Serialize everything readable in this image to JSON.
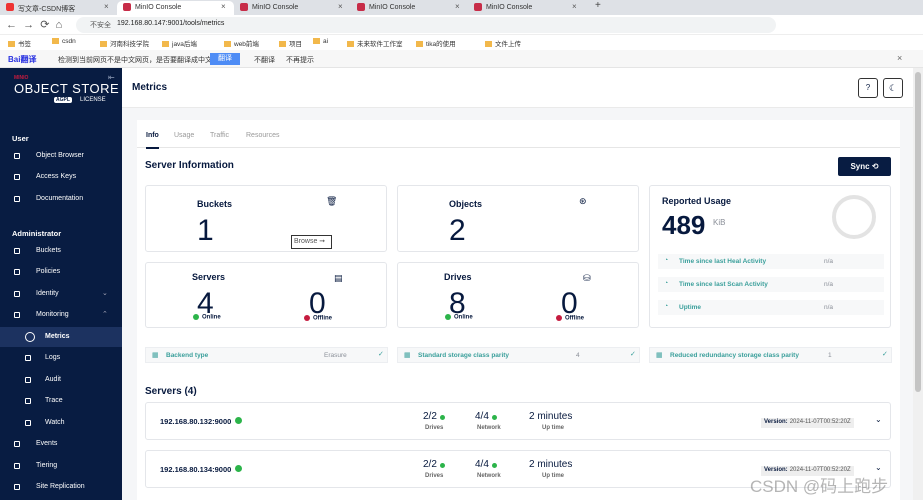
{
  "browser": {
    "tabs": [
      "写文章-CSDN博客",
      "MinIO Console",
      "MinIO Console",
      "MinIO Console",
      "MinIO Console"
    ],
    "security": "不安全",
    "url": "192.168.80.147:9001/tools/metrics",
    "bookmarks": [
      "书签",
      "csdn",
      "河南科技学院",
      "java后端",
      "web前端",
      "项目",
      "ai",
      "未来软件工作室",
      "tika的使用",
      "文件上传"
    ]
  },
  "translate_bar": {
    "logo": "Bai翻译",
    "message": "检测到当前网页不是中文网页，是否要翻译成中文？",
    "buttons": [
      "翻译",
      "不翻译",
      "不再提示"
    ]
  },
  "sidebar": {
    "logo": {
      "brand": "MINIO",
      "product": "OBJECT STORE",
      "badge": "AGPL",
      "license": "LICENSE"
    },
    "sections": [
      {
        "title": "User",
        "items": [
          {
            "label": "Object Browser"
          },
          {
            "label": "Access Keys"
          },
          {
            "label": "Documentation"
          }
        ]
      },
      {
        "title": "Administrator",
        "items": [
          {
            "label": "Buckets"
          },
          {
            "label": "Policies"
          },
          {
            "label": "Identity",
            "expandable": true
          },
          {
            "label": "Monitoring",
            "expanded": true
          },
          {
            "label": "Metrics",
            "sub": true,
            "active": true
          },
          {
            "label": "Logs",
            "sub": true
          },
          {
            "label": "Audit",
            "sub": true
          },
          {
            "label": "Trace",
            "sub": true
          },
          {
            "label": "Watch",
            "sub": true
          },
          {
            "label": "Events"
          },
          {
            "label": "Tiering"
          },
          {
            "label": "Site Replication"
          }
        ]
      }
    ]
  },
  "page": {
    "title": "Metrics",
    "tabs": [
      "Info",
      "Usage",
      "Traffic",
      "Resources"
    ],
    "section_title": "Server Information",
    "sync": "Sync",
    "buckets": {
      "label": "Buckets",
      "value": 1,
      "action": "Browse"
    },
    "objects": {
      "label": "Objects",
      "value": 2
    },
    "servers": {
      "label": "Servers",
      "online": 4,
      "online_label": "Online",
      "offline": 0,
      "offline_label": "Offline"
    },
    "drives": {
      "label": "Drives",
      "online": 8,
      "online_label": "Online",
      "offline": 0,
      "offline_label": "Offline"
    },
    "usage": {
      "label": "Reported Usage",
      "value": 489,
      "unit": "KiB",
      "stats": [
        {
          "label": "Time since last Heal Activity",
          "value": "n/a"
        },
        {
          "label": "Time since last Scan Activity",
          "value": "n/a"
        },
        {
          "label": "Uptime",
          "value": "n/a"
        }
      ]
    },
    "parity": [
      {
        "label": "Backend type",
        "value": "Erasure"
      },
      {
        "label": "Standard storage class parity",
        "value": 4
      },
      {
        "label": "Reduced redundancy storage class parity",
        "value": 1
      }
    ],
    "servers_title": "Servers (4)",
    "server_list": [
      {
        "host": "192.168.80.132:9000",
        "drives": "2/2",
        "drives_label": "Drives",
        "network": "4/4",
        "network_label": "Network",
        "uptime": "2 minutes",
        "uptime_label": "Up time",
        "version_label": "Version:",
        "version": "2024-11-07T00:52:20Z"
      },
      {
        "host": "192.168.80.134:9000",
        "drives": "2/2",
        "drives_label": "Drives",
        "network": "4/4",
        "network_label": "Network",
        "uptime": "2 minutes",
        "uptime_label": "Up time",
        "version_label": "Version:",
        "version": "2024-11-07T00:52:20Z"
      }
    ]
  },
  "watermark": "CSDN @码上跑步"
}
